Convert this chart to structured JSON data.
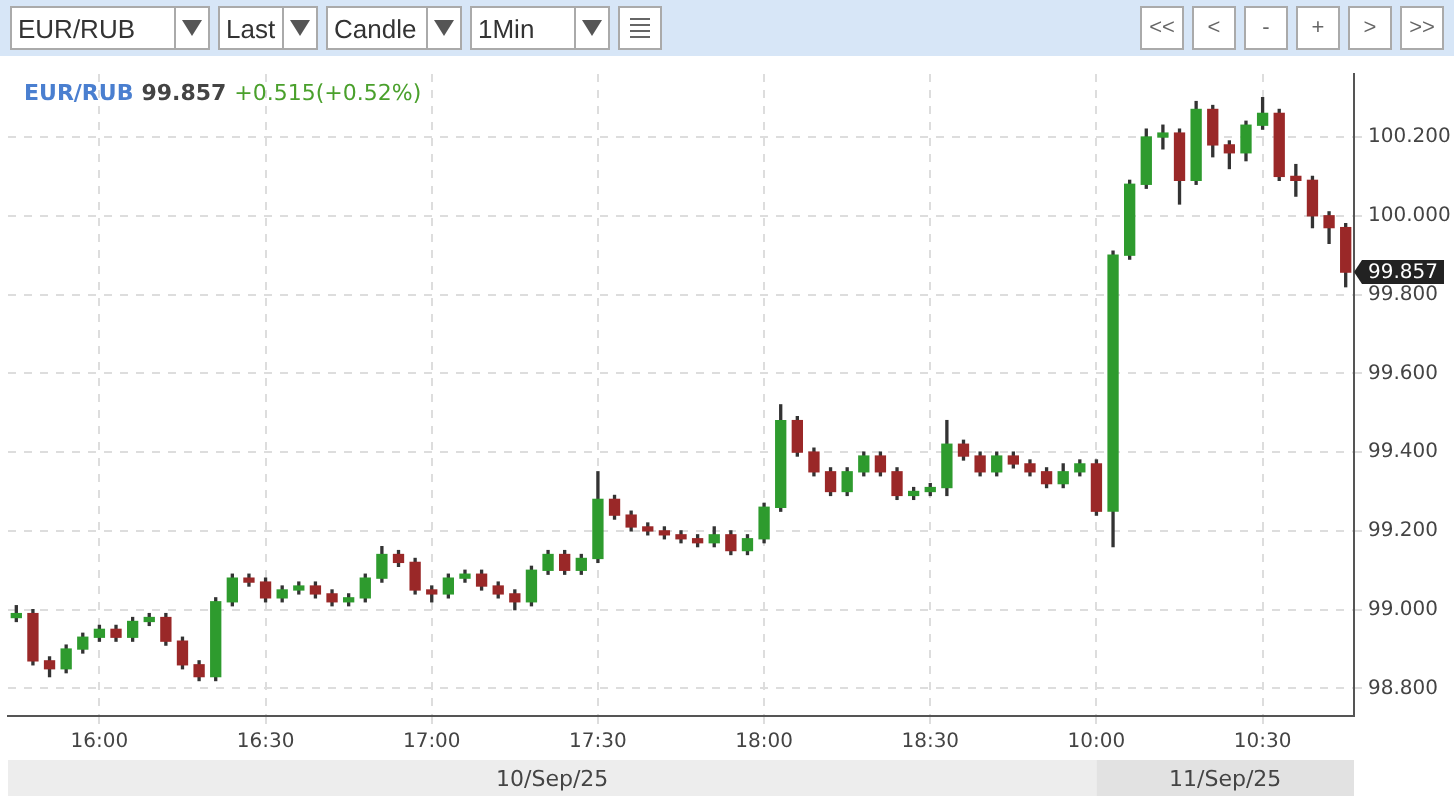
{
  "chart_data": {
    "type": "candlestick",
    "title": "EUR/RUB",
    "subtitle": "99.857",
    "annotations": [
      "+0.515(+0.52%)",
      "99.857",
      "10/Sep/25",
      "11/Sep/25",
      "EUR/RUB",
      "Last",
      "Candle",
      "1Min",
      "<<",
      "<",
      "-",
      "+",
      ">",
      ">>"
    ],
    "categories": [
      null,
      null,
      null,
      null,
      null,
      "16:00",
      null,
      null,
      null,
      null,
      null,
      null,
      null,
      null,
      null,
      "16:30",
      null,
      null,
      null,
      null,
      null,
      null,
      null,
      null,
      null,
      "17:00",
      null,
      null,
      null,
      null,
      null,
      null,
      null,
      null,
      null,
      "17:30",
      null,
      null,
      null,
      null,
      null,
      null,
      null,
      null,
      null,
      "18:00",
      null,
      null,
      null,
      null,
      null,
      null,
      null,
      null,
      null,
      "18:30",
      null,
      null,
      null,
      null,
      null,
      null,
      null,
      null,
      null,
      "10:00",
      null,
      null,
      null,
      null,
      null,
      null,
      null,
      null,
      null,
      "10:30",
      null,
      null,
      null,
      null,
      null
    ],
    "ohlc": [
      [
        98.98,
        99.01,
        98.97,
        98.99
      ],
      [
        98.99,
        99.0,
        98.86,
        98.87
      ],
      [
        98.87,
        98.88,
        98.83,
        98.85
      ],
      [
        98.85,
        98.91,
        98.84,
        98.9
      ],
      [
        98.9,
        98.94,
        98.89,
        98.93
      ],
      [
        98.93,
        98.96,
        98.92,
        98.95
      ],
      [
        98.95,
        98.96,
        98.92,
        98.93
      ],
      [
        98.93,
        98.98,
        98.92,
        98.97
      ],
      [
        98.97,
        98.99,
        98.96,
        98.98
      ],
      [
        98.98,
        98.99,
        98.91,
        98.92
      ],
      [
        98.92,
        98.93,
        98.85,
        98.86
      ],
      [
        98.86,
        98.87,
        98.82,
        98.83
      ],
      [
        98.83,
        99.03,
        98.82,
        99.02
      ],
      [
        99.02,
        99.09,
        99.01,
        99.08
      ],
      [
        99.08,
        99.09,
        99.06,
        99.07
      ],
      [
        99.07,
        99.08,
        99.02,
        99.03
      ],
      [
        99.03,
        99.06,
        99.02,
        99.05
      ],
      [
        99.05,
        99.07,
        99.04,
        99.06
      ],
      [
        99.06,
        99.07,
        99.03,
        99.04
      ],
      [
        99.04,
        99.05,
        99.01,
        99.02
      ],
      [
        99.02,
        99.04,
        99.01,
        99.03
      ],
      [
        99.03,
        99.09,
        99.02,
        99.08
      ],
      [
        99.08,
        99.16,
        99.07,
        99.14
      ],
      [
        99.14,
        99.15,
        99.11,
        99.12
      ],
      [
        99.12,
        99.13,
        99.04,
        99.05
      ],
      [
        99.05,
        99.06,
        99.02,
        99.04
      ],
      [
        99.04,
        99.09,
        99.03,
        99.08
      ],
      [
        99.08,
        99.1,
        99.07,
        99.09
      ],
      [
        99.09,
        99.1,
        99.05,
        99.06
      ],
      [
        99.06,
        99.07,
        99.03,
        99.04
      ],
      [
        99.04,
        99.05,
        99.0,
        99.02
      ],
      [
        99.02,
        99.11,
        99.01,
        99.1
      ],
      [
        99.1,
        99.15,
        99.09,
        99.14
      ],
      [
        99.14,
        99.15,
        99.09,
        99.1
      ],
      [
        99.1,
        99.14,
        99.09,
        99.13
      ],
      [
        99.13,
        99.35,
        99.12,
        99.28
      ],
      [
        99.28,
        99.29,
        99.23,
        99.24
      ],
      [
        99.24,
        99.25,
        99.2,
        99.21
      ],
      [
        99.21,
        99.22,
        99.19,
        99.2
      ],
      [
        99.2,
        99.21,
        99.18,
        99.19
      ],
      [
        99.19,
        99.2,
        99.17,
        99.18
      ],
      [
        99.18,
        99.19,
        99.16,
        99.17
      ],
      [
        99.17,
        99.21,
        99.16,
        99.19
      ],
      [
        99.19,
        99.2,
        99.14,
        99.15
      ],
      [
        99.15,
        99.19,
        99.14,
        99.18
      ],
      [
        99.18,
        99.27,
        99.17,
        99.26
      ],
      [
        99.26,
        99.52,
        99.25,
        99.48
      ],
      [
        99.48,
        99.49,
        99.39,
        99.4
      ],
      [
        99.4,
        99.41,
        99.34,
        99.35
      ],
      [
        99.35,
        99.36,
        99.29,
        99.3
      ],
      [
        99.3,
        99.36,
        99.29,
        99.35
      ],
      [
        99.35,
        99.4,
        99.34,
        99.39
      ],
      [
        99.39,
        99.4,
        99.34,
        99.35
      ],
      [
        99.35,
        99.36,
        99.28,
        99.29
      ],
      [
        99.29,
        99.31,
        99.28,
        99.3
      ],
      [
        99.3,
        99.32,
        99.29,
        99.31
      ],
      [
        99.31,
        99.48,
        99.29,
        99.42
      ],
      [
        99.42,
        99.43,
        99.38,
        99.39
      ],
      [
        99.39,
        99.4,
        99.34,
        99.35
      ],
      [
        99.35,
        99.4,
        99.34,
        99.39
      ],
      [
        99.39,
        99.4,
        99.36,
        99.37
      ],
      [
        99.37,
        99.38,
        99.34,
        99.35
      ],
      [
        99.35,
        99.36,
        99.31,
        99.32
      ],
      [
        99.32,
        99.37,
        99.31,
        99.35
      ],
      [
        99.35,
        99.38,
        99.34,
        99.37
      ],
      [
        99.37,
        99.38,
        99.24,
        99.25
      ],
      [
        99.25,
        99.91,
        99.16,
        99.9
      ],
      [
        99.9,
        100.09,
        99.89,
        100.08
      ],
      [
        100.08,
        100.22,
        100.07,
        100.2
      ],
      [
        100.2,
        100.23,
        100.17,
        100.21
      ],
      [
        100.21,
        100.22,
        100.03,
        100.09
      ],
      [
        100.09,
        100.29,
        100.08,
        100.27
      ],
      [
        100.27,
        100.28,
        100.15,
        100.18
      ],
      [
        100.18,
        100.19,
        100.12,
        100.16
      ],
      [
        100.16,
        100.24,
        100.14,
        100.23
      ],
      [
        100.23,
        100.3,
        100.22,
        100.26
      ],
      [
        100.26,
        100.27,
        100.09,
        100.1
      ],
      [
        100.1,
        100.13,
        100.05,
        100.09
      ],
      [
        100.09,
        100.1,
        99.97,
        100.0
      ],
      [
        100.0,
        100.01,
        99.93,
        99.97
      ],
      [
        99.97,
        99.98,
        99.82,
        99.857
      ]
    ],
    "colors": [
      "#2e9b2e",
      "#9a2828",
      "#9a2828",
      "#2e9b2e",
      "#2e9b2e",
      "#2e9b2e",
      "#9a2828",
      "#2e9b2e",
      "#2e9b2e",
      "#9a2828",
      "#9a2828",
      "#9a2828",
      "#2e9b2e",
      "#2e9b2e",
      "#9a2828",
      "#9a2828",
      "#2e9b2e",
      "#2e9b2e",
      "#9a2828",
      "#9a2828",
      "#2e9b2e",
      "#2e9b2e",
      "#2e9b2e",
      "#9a2828",
      "#9a2828",
      "#9a2828",
      "#2e9b2e",
      "#2e9b2e",
      "#9a2828",
      "#9a2828",
      "#9a2828",
      "#2e9b2e",
      "#2e9b2e",
      "#9a2828",
      "#2e9b2e",
      "#2e9b2e",
      "#9a2828",
      "#9a2828",
      "#9a2828",
      "#9a2828",
      "#9a2828",
      "#9a2828",
      "#2e9b2e",
      "#9a2828",
      "#2e9b2e",
      "#2e9b2e",
      "#2e9b2e",
      "#9a2828",
      "#9a2828",
      "#9a2828",
      "#2e9b2e",
      "#2e9b2e",
      "#9a2828",
      "#9a2828",
      "#2e9b2e",
      "#2e9b2e",
      "#2e9b2e",
      "#9a2828",
      "#9a2828",
      "#2e9b2e",
      "#9a2828",
      "#9a2828",
      "#9a2828",
      "#2e9b2e",
      "#2e9b2e",
      "#9a2828",
      "#2e9b2e",
      "#2e9b2e",
      "#2e9b2e",
      "#2e9b2e",
      "#9a2828",
      "#2e9b2e",
      "#9a2828",
      "#9a2828",
      "#2e9b2e",
      "#2e9b2e",
      "#9a2828",
      "#9a2828",
      "#9a2828",
      "#9a2828",
      "#9a2828"
    ],
    "ylim": [
      98.73,
      100.36
    ],
    "yticks": [
      {
        "value": 98.8,
        "label": "98.800"
      },
      {
        "value": 99.0,
        "label": "99.000"
      },
      {
        "value": 99.2,
        "label": "99.200"
      },
      {
        "value": 99.4,
        "label": "99.400"
      },
      {
        "value": 99.6,
        "label": "99.600"
      },
      {
        "value": 99.8,
        "label": "99.800"
      },
      {
        "value": 100.0,
        "label": "100.000"
      },
      {
        "value": 100.2,
        "label": "100.200"
      }
    ],
    "grid": true
  }
}
